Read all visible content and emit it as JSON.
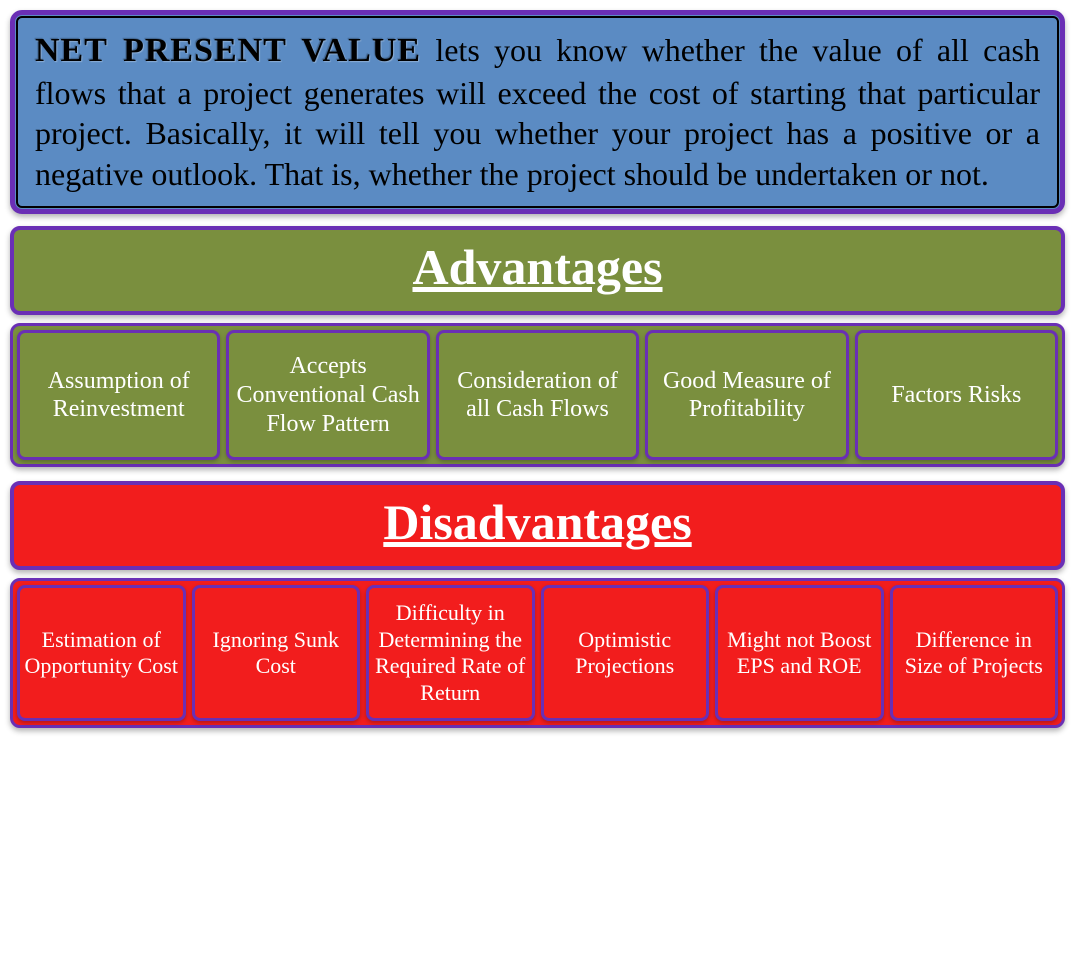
{
  "colors": {
    "definition_bg": "#5b8bc3",
    "border_purple": "#6a2fb5",
    "advantage_bg": "#7a8f3e",
    "disadvantage_bg": "#f21d1d",
    "text_white": "#ffffff",
    "text_black": "#000000"
  },
  "definition": {
    "title": "NET PRESENT VALUE",
    "body": " lets you know whether the value of all cash flows that a project generates will exceed the cost of starting that particular project. Basically, it will tell you whether your project has a positive or a negative outlook. That is, whether the project should be undertaken or not."
  },
  "advantages": {
    "header": "Advantages",
    "items": [
      "Assumption of Reinvestment",
      "Accepts Conventional Cash Flow Pattern",
      "Consideration of all Cash Flows",
      "Good Measure of Profitability",
      "Factors Risks"
    ]
  },
  "disadvantages": {
    "header": "Disadvantages",
    "items": [
      "Estimation of Opportunity Cost",
      "Ignoring Sunk Cost",
      "Difficulty in Determining the Required Rate of Return",
      "Optimistic Projections",
      "Might not Boost EPS and ROE",
      "Difference in Size of Projects"
    ]
  },
  "typography": {
    "definition_fontsize": 32,
    "header_fontsize": 50,
    "adv_item_fontsize": 24,
    "dis_item_fontsize": 22
  }
}
